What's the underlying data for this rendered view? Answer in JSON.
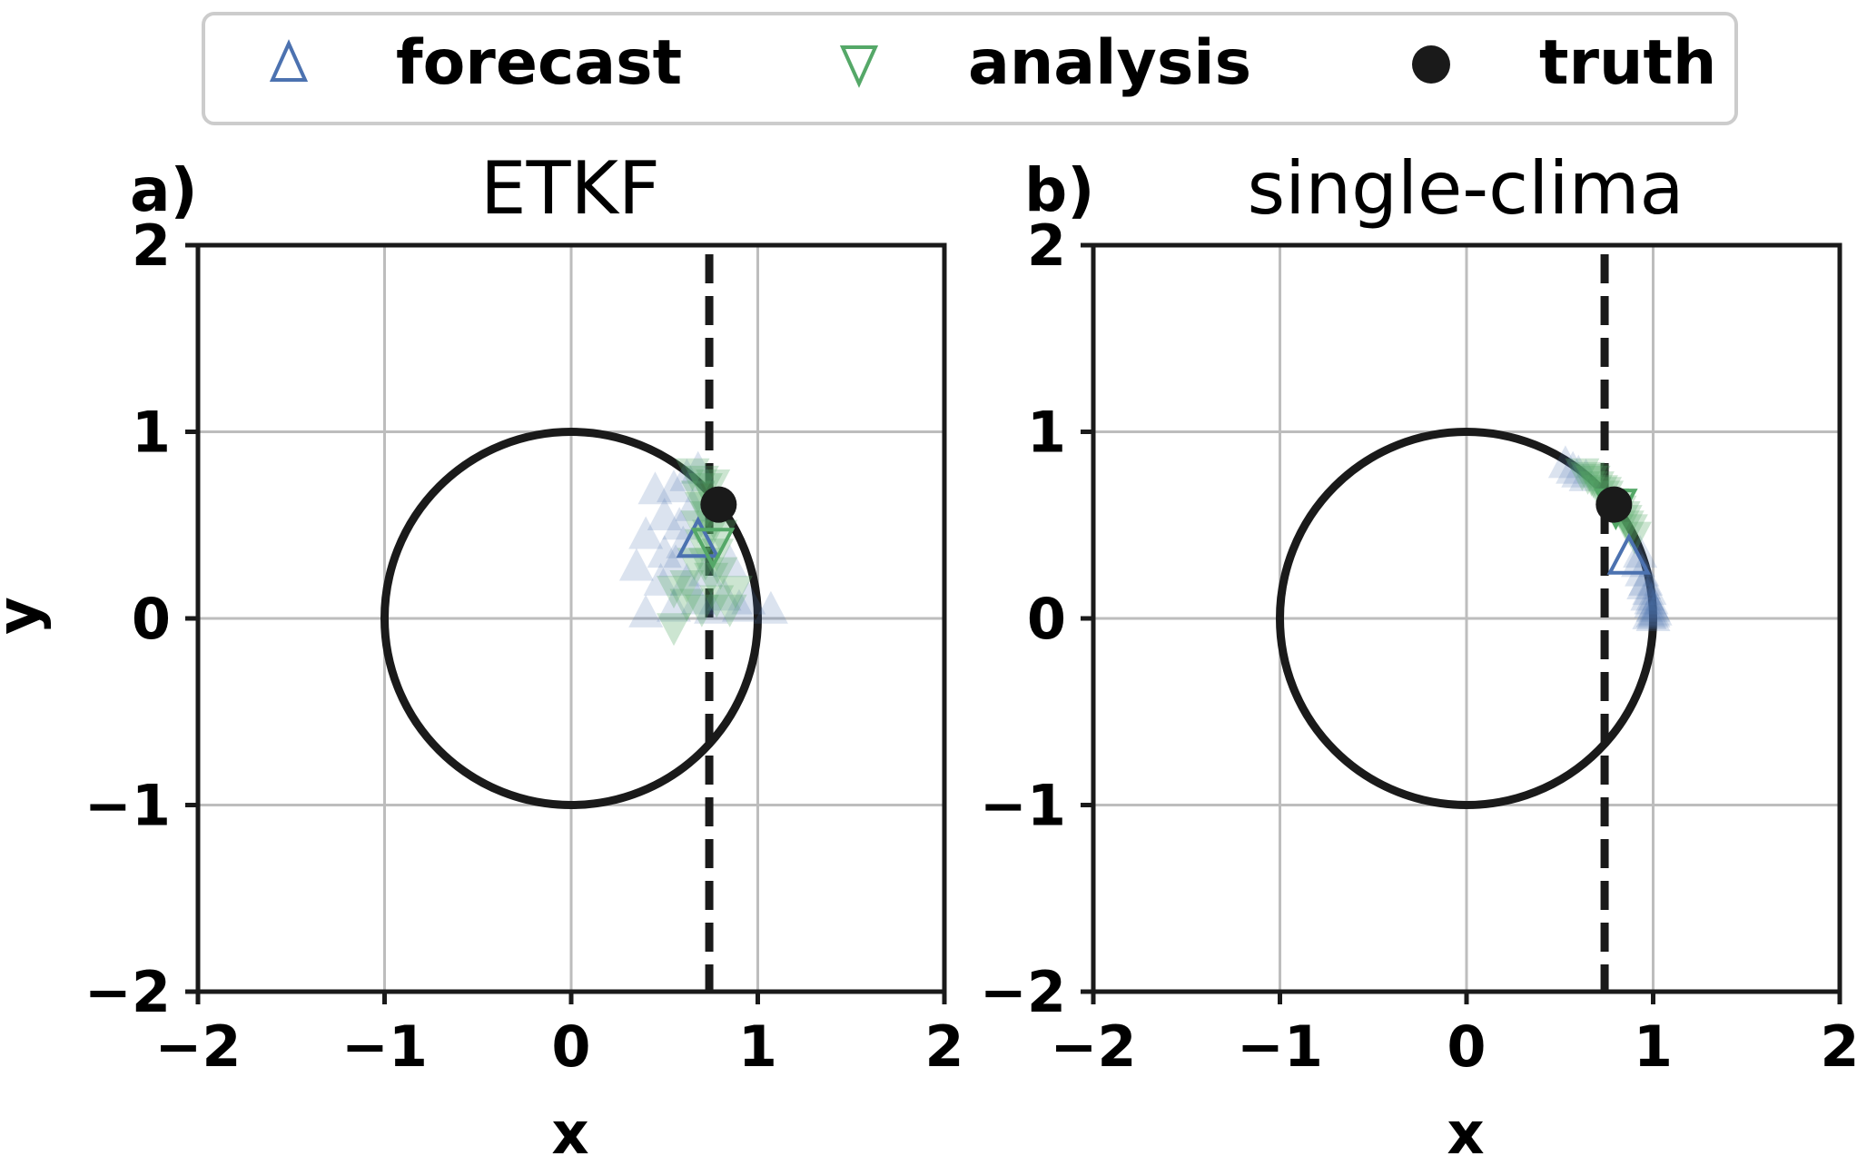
{
  "legend": {
    "entries": [
      {
        "label": "forecast",
        "marker": "triangle-up-icon",
        "color": "#4c72b0"
      },
      {
        "label": "analysis",
        "marker": "triangle-down-icon",
        "color": "#55a868"
      },
      {
        "label": "truth",
        "marker": "filled-circle-icon",
        "color": "#1a1a1a"
      }
    ]
  },
  "chart_data": [
    {
      "type": "scatter",
      "panel_label": "a)",
      "title": "ETKF",
      "xlabel": "x",
      "ylabel": "y",
      "xlim": [
        -2,
        2
      ],
      "ylim": [
        -2,
        2
      ],
      "xticks": [
        -2,
        -1,
        0,
        1,
        2
      ],
      "yticks": [
        -2,
        -1,
        0,
        1,
        2
      ],
      "xtick_labels": [
        "−2",
        "−1",
        "0",
        "1",
        "2"
      ],
      "ytick_labels": [
        "−2",
        "−1",
        "0",
        "1",
        "2"
      ],
      "grid": true,
      "unit_circle": {
        "center": [
          0,
          0
        ],
        "radius": 1
      },
      "observation_line_x": 0.74,
      "truth": {
        "x": 0.79,
        "y": 0.61
      },
      "forecast_mean": {
        "x": 0.68,
        "y": 0.42
      },
      "analysis_mean": {
        "x": 0.76,
        "y": 0.39
      },
      "forecast_ensemble": [
        {
          "x": 0.45,
          "y": 0.69
        },
        {
          "x": 0.55,
          "y": 0.7
        },
        {
          "x": 0.62,
          "y": 0.76
        },
        {
          "x": 0.68,
          "y": 0.8
        },
        {
          "x": 0.5,
          "y": 0.55
        },
        {
          "x": 0.58,
          "y": 0.5
        },
        {
          "x": 0.4,
          "y": 0.45
        },
        {
          "x": 0.5,
          "y": 0.35
        },
        {
          "x": 0.35,
          "y": 0.28
        },
        {
          "x": 0.48,
          "y": 0.2
        },
        {
          "x": 0.56,
          "y": 0.3
        },
        {
          "x": 0.62,
          "y": 0.2
        },
        {
          "x": 0.68,
          "y": 0.1
        },
        {
          "x": 0.4,
          "y": 0.03
        },
        {
          "x": 0.55,
          "y": 0.06
        },
        {
          "x": 0.75,
          "y": 0.05
        },
        {
          "x": 0.82,
          "y": 0.12
        },
        {
          "x": 0.9,
          "y": 0.06
        },
        {
          "x": 1.07,
          "y": 0.05
        },
        {
          "x": 0.95,
          "y": 0.1
        },
        {
          "x": 0.65,
          "y": 0.6
        },
        {
          "x": 0.6,
          "y": 0.4
        },
        {
          "x": 0.85,
          "y": 0.3
        },
        {
          "x": 0.72,
          "y": 0.25
        }
      ],
      "analysis_ensemble": [
        {
          "x": 0.65,
          "y": 0.78
        },
        {
          "x": 0.7,
          "y": 0.74
        },
        {
          "x": 0.72,
          "y": 0.7
        },
        {
          "x": 0.76,
          "y": 0.72
        },
        {
          "x": 0.68,
          "y": 0.66
        },
        {
          "x": 0.7,
          "y": 0.6
        },
        {
          "x": 0.73,
          "y": 0.55
        },
        {
          "x": 0.68,
          "y": 0.5
        },
        {
          "x": 0.74,
          "y": 0.45
        },
        {
          "x": 0.7,
          "y": 0.4
        },
        {
          "x": 0.78,
          "y": 0.35
        },
        {
          "x": 0.72,
          "y": 0.3
        },
        {
          "x": 0.8,
          "y": 0.25
        },
        {
          "x": 0.55,
          "y": 0.15
        },
        {
          "x": 0.62,
          "y": 0.18
        },
        {
          "x": 0.88,
          "y": 0.15
        },
        {
          "x": 0.78,
          "y": 0.1
        },
        {
          "x": 0.7,
          "y": 0.05
        },
        {
          "x": 0.55,
          "y": -0.05
        },
        {
          "x": 0.85,
          "y": 0.05
        },
        {
          "x": 0.75,
          "y": 0.22
        },
        {
          "x": 0.66,
          "y": 0.3
        },
        {
          "x": 0.8,
          "y": 0.45
        },
        {
          "x": 0.62,
          "y": 0.08
        }
      ]
    },
    {
      "type": "scatter",
      "panel_label": "b)",
      "title": "single-clima",
      "xlabel": "x",
      "ylabel": "",
      "xlim": [
        -2,
        2
      ],
      "ylim": [
        -2,
        2
      ],
      "xticks": [
        -2,
        -1,
        0,
        1,
        2
      ],
      "yticks": [
        -2,
        -1,
        0,
        1,
        2
      ],
      "xtick_labels": [
        "−2",
        "−1",
        "0",
        "1",
        "2"
      ],
      "ytick_labels": [
        "−2",
        "−1",
        "0",
        "1",
        "2"
      ],
      "grid": true,
      "unit_circle": {
        "center": [
          0,
          0
        ],
        "radius": 1
      },
      "observation_line_x": 0.74,
      "truth": {
        "x": 0.79,
        "y": 0.61
      },
      "forecast_mean": {
        "x": 0.87,
        "y": 0.33
      },
      "analysis_mean": {
        "x": 0.8,
        "y": 0.6
      },
      "forecast_ensemble": [
        {
          "x": 0.53,
          "y": 0.83
        },
        {
          "x": 0.57,
          "y": 0.8
        },
        {
          "x": 0.6,
          "y": 0.78
        },
        {
          "x": 0.64,
          "y": 0.76
        },
        {
          "x": 0.92,
          "y": 0.3
        },
        {
          "x": 0.94,
          "y": 0.25
        },
        {
          "x": 0.96,
          "y": 0.2
        },
        {
          "x": 0.98,
          "y": 0.15
        },
        {
          "x": 0.99,
          "y": 0.1
        },
        {
          "x": 1.0,
          "y": 0.06
        },
        {
          "x": 1.0,
          "y": 0.03
        },
        {
          "x": 1.0,
          "y": 0.01
        },
        {
          "x": 0.97,
          "y": 0.12
        },
        {
          "x": 0.95,
          "y": 0.18
        },
        {
          "x": 0.99,
          "y": 0.08
        },
        {
          "x": 0.93,
          "y": 0.35
        },
        {
          "x": 1.01,
          "y": 0.04
        },
        {
          "x": 0.98,
          "y": 0.02
        }
      ],
      "analysis_ensemble": [
        {
          "x": 0.62,
          "y": 0.78
        },
        {
          "x": 0.65,
          "y": 0.76
        },
        {
          "x": 0.68,
          "y": 0.74
        },
        {
          "x": 0.7,
          "y": 0.71
        },
        {
          "x": 0.72,
          "y": 0.69
        },
        {
          "x": 0.75,
          "y": 0.66
        },
        {
          "x": 0.78,
          "y": 0.62
        },
        {
          "x": 0.82,
          "y": 0.58
        },
        {
          "x": 0.85,
          "y": 0.53
        },
        {
          "x": 0.88,
          "y": 0.48
        },
        {
          "x": 0.9,
          "y": 0.44
        },
        {
          "x": 0.86,
          "y": 0.5
        },
        {
          "x": 0.74,
          "y": 0.68
        },
        {
          "x": 0.8,
          "y": 0.6
        },
        {
          "x": 0.84,
          "y": 0.55
        },
        {
          "x": 0.67,
          "y": 0.75
        }
      ]
    }
  ]
}
